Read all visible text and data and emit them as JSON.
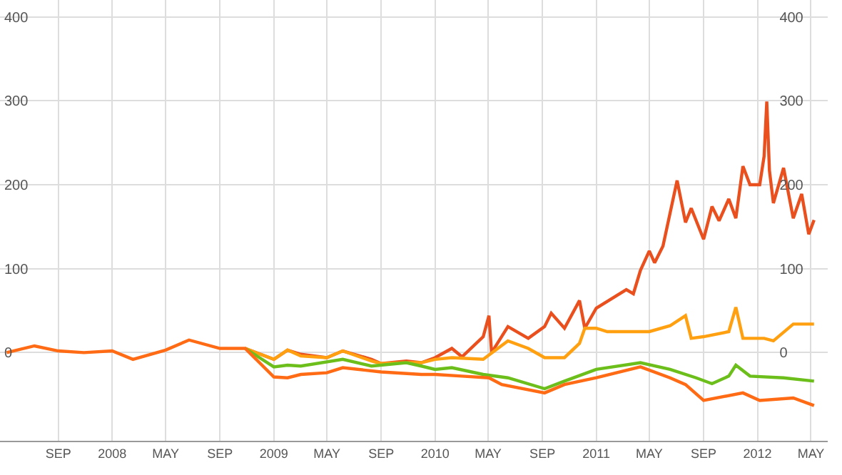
{
  "chart_data": {
    "type": "line",
    "xlim": [
      "2007-04-22",
      "2012-06-08"
    ],
    "xticks": [
      {
        "value": "2007-09-01",
        "label": "SEP"
      },
      {
        "value": "2008-01-01",
        "label": "2008"
      },
      {
        "value": "2008-05-01",
        "label": "MAY"
      },
      {
        "value": "2008-09-01",
        "label": "SEP"
      },
      {
        "value": "2009-01-01",
        "label": "2009"
      },
      {
        "value": "2009-05-01",
        "label": "MAY"
      },
      {
        "value": "2009-09-01",
        "label": "SEP"
      },
      {
        "value": "2010-01-01",
        "label": "2010"
      },
      {
        "value": "2010-05-01",
        "label": "MAY"
      },
      {
        "value": "2010-09-01",
        "label": "SEP"
      },
      {
        "value": "2011-01-01",
        "label": "2011"
      },
      {
        "value": "2011-05-01",
        "label": "MAY"
      },
      {
        "value": "2011-09-01",
        "label": "SEP"
      },
      {
        "value": "2012-01-01",
        "label": "2012"
      },
      {
        "value": "2012-05-01",
        "label": "MAY"
      }
    ],
    "ylim": [
      -105,
      420
    ],
    "yticks": [
      0,
      100,
      200,
      300,
      400
    ],
    "y2lim": [
      -105,
      420
    ],
    "y2ticks": [
      0,
      100,
      200,
      300,
      400
    ],
    "grid": true,
    "marker": "none",
    "line_style": "solid",
    "series": [
      {
        "color": "#ea4f1e",
        "x": [
          "2008-10-28",
          "2009-01-01",
          "2009-02-01",
          "2009-03-03",
          "2009-05-01",
          "2009-06-06",
          "2009-08-10",
          "2009-09-01",
          "2009-10-28",
          "2009-12-01",
          "2010-01-01",
          "2010-02-08",
          "2010-03-03",
          "2010-04-20",
          "2010-05-03",
          "2010-05-09",
          "2010-06-15",
          "2010-07-31",
          "2010-09-06",
          "2010-09-21",
          "2010-10-21",
          "2010-11-24",
          "2010-12-06",
          "2011-01-01",
          "2011-03-10",
          "2011-03-26",
          "2011-04-11",
          "2011-05-01",
          "2011-05-13",
          "2011-06-01",
          "2011-06-17",
          "2011-07-03",
          "2011-07-22",
          "2011-08-04",
          "2011-09-01",
          "2011-09-20",
          "2011-10-06",
          "2011-10-28",
          "2011-11-13",
          "2011-11-29",
          "2011-12-15",
          "2012-01-06",
          "2012-01-16",
          "2012-01-22",
          "2012-01-28",
          "2012-02-06",
          "2012-02-29",
          "2012-03-22",
          "2012-04-10",
          "2012-04-26",
          "2012-05-08"
        ],
        "values": [
          5,
          -8,
          3,
          -2,
          -6,
          2,
          -8,
          -13,
          -10,
          -12,
          -6,
          5,
          -5,
          19,
          44,
          0,
          31,
          17,
          31,
          47,
          29,
          62,
          29,
          53,
          75,
          70,
          98,
          121,
          107,
          127,
          166,
          205,
          155,
          172,
          135,
          174,
          157,
          183,
          160,
          222,
          200,
          200,
          234,
          299,
          217,
          178,
          220,
          160,
          189,
          141,
          158
        ]
      },
      {
        "color": "#ffa010",
        "x": [
          "2008-10-28",
          "2009-01-01",
          "2009-02-01",
          "2009-03-03",
          "2009-05-01",
          "2009-06-06",
          "2009-08-10",
          "2009-09-01",
          "2009-10-28",
          "2009-12-01",
          "2010-01-01",
          "2010-02-08",
          "2010-04-20",
          "2010-06-15",
          "2010-07-31",
          "2010-09-06",
          "2010-10-21",
          "2010-11-24",
          "2010-12-06",
          "2011-01-01",
          "2011-01-26",
          "2011-03-10",
          "2011-05-01",
          "2011-06-17",
          "2011-07-22",
          "2011-08-04",
          "2011-09-01",
          "2011-10-28",
          "2011-11-13",
          "2011-11-29",
          "2012-01-16",
          "2012-02-06",
          "2012-03-22",
          "2012-05-08"
        ],
        "values": [
          5,
          -8,
          3,
          -4,
          -6,
          2,
          -10,
          -13,
          -12,
          -12,
          -8,
          -6,
          -8,
          14,
          5,
          -6,
          -6,
          11,
          29,
          29,
          25,
          25,
          25,
          32,
          44,
          17,
          19,
          25,
          54,
          17,
          17,
          14,
          34,
          34
        ]
      },
      {
        "color": "#6cbf1a",
        "x": [
          "2008-10-28",
          "2009-01-01",
          "2009-02-01",
          "2009-03-03",
          "2009-06-06",
          "2009-08-10",
          "2009-10-28",
          "2009-12-01",
          "2010-01-01",
          "2010-02-08",
          "2010-04-20",
          "2010-06-15",
          "2010-09-06",
          "2010-10-21",
          "2011-01-01",
          "2011-04-11",
          "2011-06-17",
          "2011-08-15",
          "2011-09-20",
          "2011-10-28",
          "2011-11-13",
          "2011-12-15",
          "2012-02-29",
          "2012-05-08"
        ],
        "values": [
          5,
          -17,
          -15,
          -16,
          -8,
          -16,
          -12,
          -16,
          -20,
          -18,
          -26,
          -30,
          -43,
          -34,
          -20,
          -12,
          -20,
          -30,
          -37,
          -28,
          -15,
          -28,
          -30,
          -34
        ]
      },
      {
        "color": "#fe6b14",
        "x": [
          "2007-05-07",
          "2007-07-09",
          "2007-09-01",
          "2007-10-29",
          "2008-01-01",
          "2008-02-17",
          "2008-05-01",
          "2008-06-23",
          "2008-09-01",
          "2008-10-28",
          "2009-01-01",
          "2009-02-01",
          "2009-03-03",
          "2009-05-01",
          "2009-06-06",
          "2009-09-01",
          "2009-12-01",
          "2010-01-01",
          "2010-03-03",
          "2010-05-03",
          "2010-06-01",
          "2010-09-06",
          "2010-10-21",
          "2011-01-01",
          "2011-04-11",
          "2011-06-17",
          "2011-07-22",
          "2011-09-01",
          "2011-11-29",
          "2012-01-06",
          "2012-03-22",
          "2012-05-08"
        ],
        "values": [
          0,
          8,
          2,
          0,
          2,
          -8,
          3,
          15,
          5,
          5,
          -29,
          -30,
          -26,
          -24,
          -18,
          -23,
          -26,
          -26,
          -28,
          -30,
          -38,
          -48,
          -38,
          -30,
          -17,
          -30,
          -38,
          -57,
          -48,
          -57,
          -54,
          -63
        ]
      }
    ]
  }
}
